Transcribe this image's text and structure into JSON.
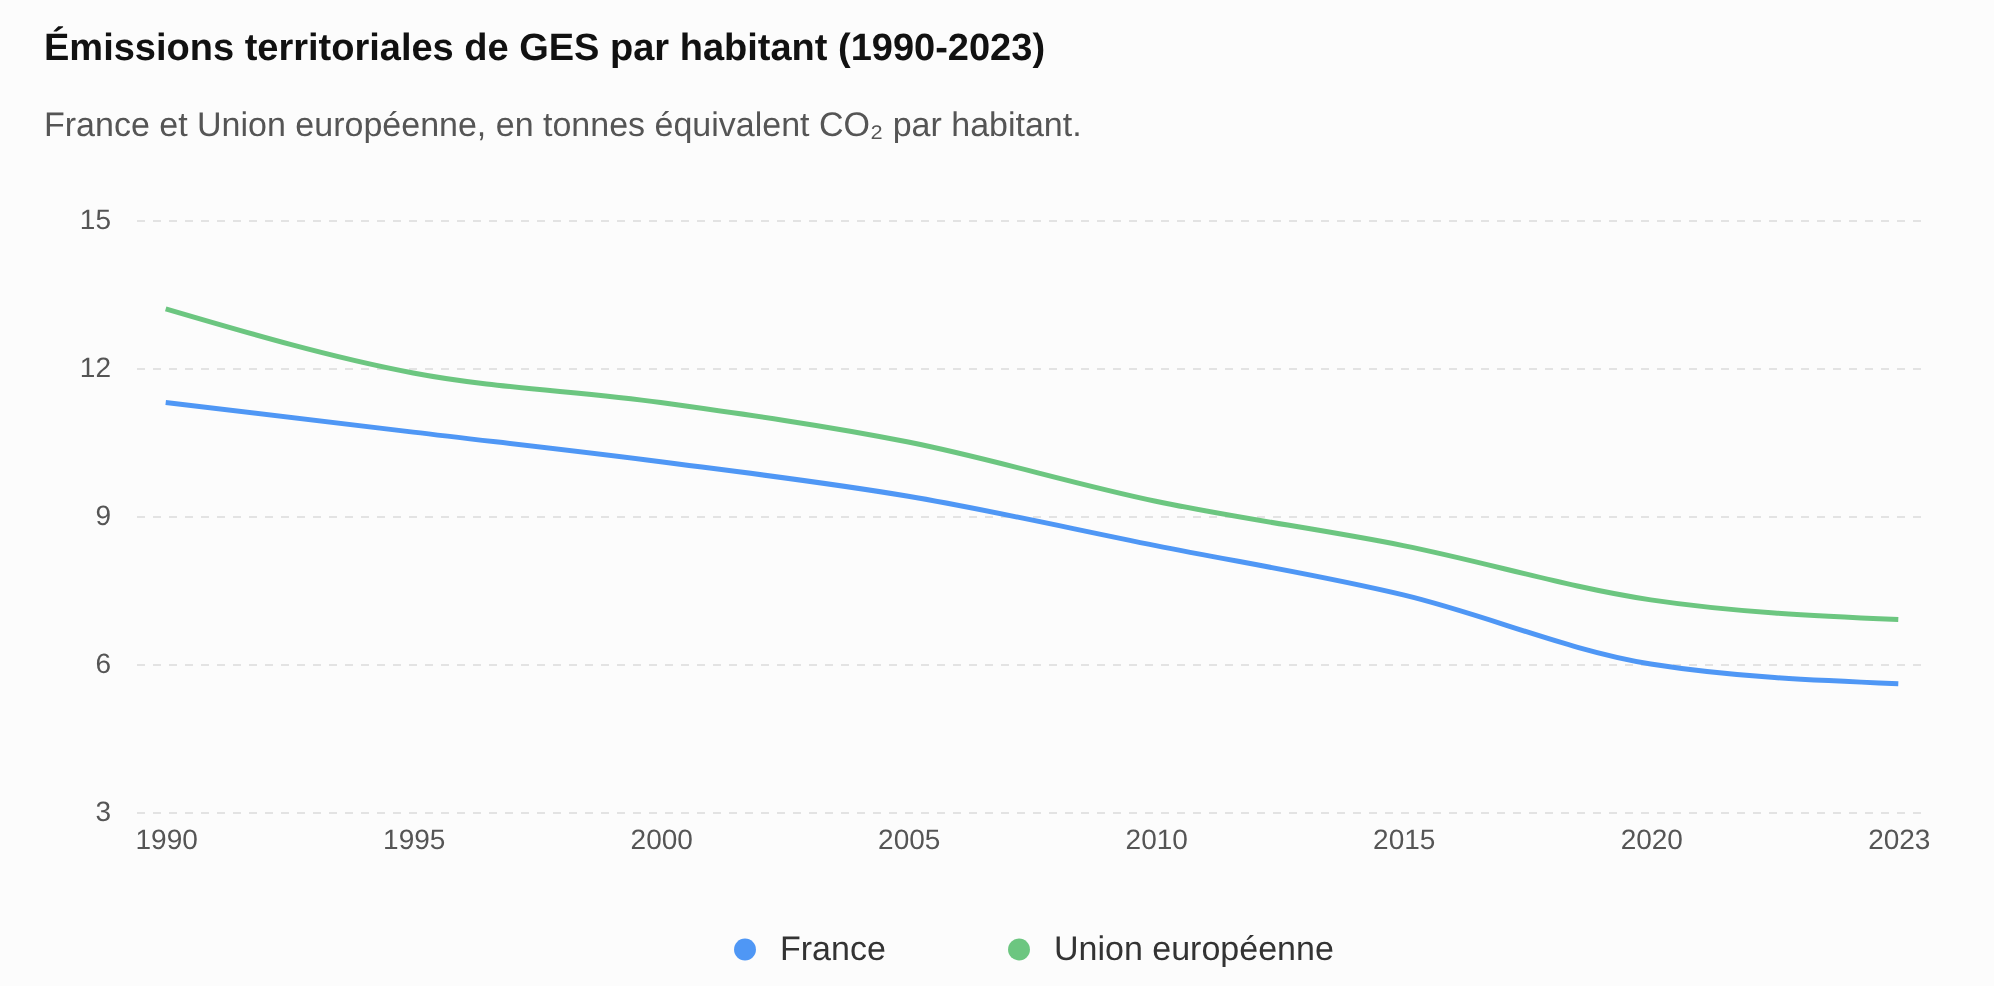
{
  "chart_data": {
    "type": "line",
    "title": "Émissions territoriales de GES par habitant (1990-2023)",
    "subtitle": "France et Union européenne, en tonnes équivalent CO₂ par habitant.",
    "categories": [
      "1990",
      "1995",
      "2000",
      "2005",
      "2010",
      "2015",
      "2020",
      "2023"
    ],
    "series": [
      {
        "name": "France",
        "color": "#4f97f5",
        "values": [
          11.3,
          10.7,
          10.1,
          9.4,
          8.4,
          7.4,
          6.0,
          5.6
        ]
      },
      {
        "name": "Union européenne",
        "color": "#6cc680",
        "values": [
          13.2,
          11.9,
          11.3,
          10.5,
          9.3,
          8.4,
          7.3,
          6.9
        ]
      }
    ],
    "ylim": [
      3,
      15
    ],
    "yticks": [
      3,
      6,
      9,
      12,
      15
    ],
    "grid": "y",
    "legend": "bottom"
  }
}
